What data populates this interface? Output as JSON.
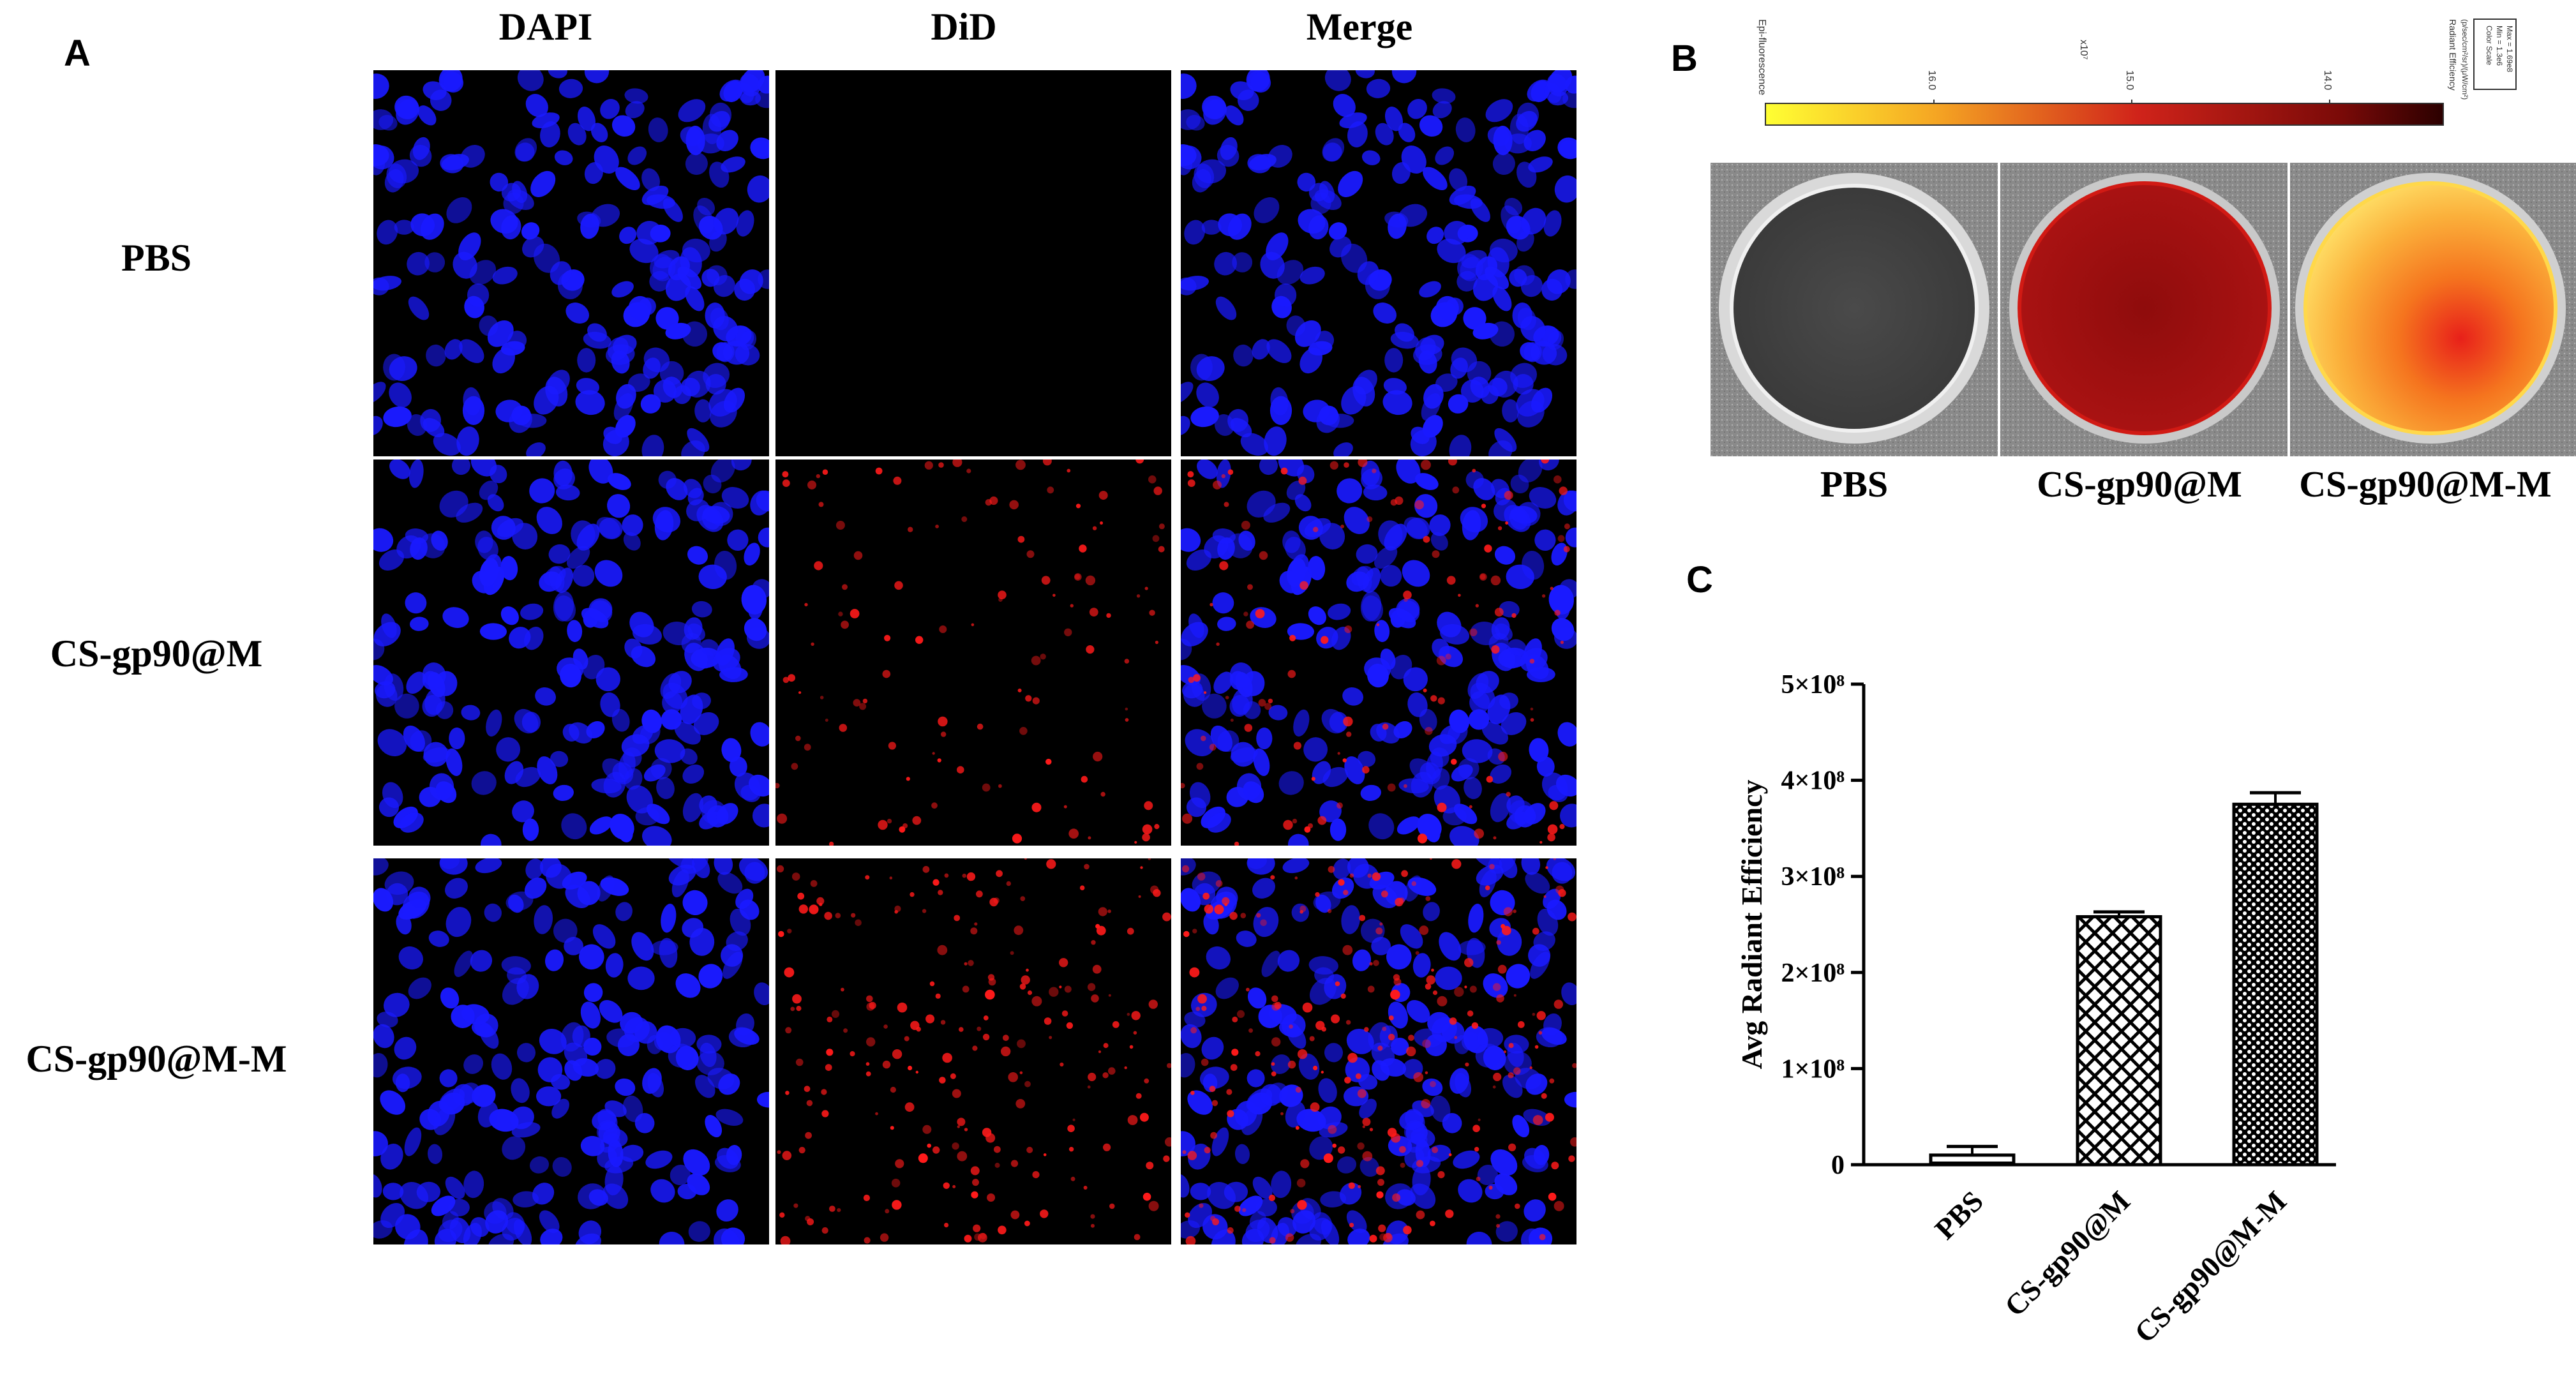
{
  "panel_a": {
    "letter": "A",
    "columns": [
      "DAPI",
      "DiD",
      "Merge"
    ],
    "rows": [
      "PBS",
      "CS-gp90@M",
      "CS-gp90@M-M"
    ]
  },
  "panel_b": {
    "letter": "B",
    "colorbar": {
      "left_label": "Epi-fluorescence",
      "ticks": [
        "16.0",
        "15.0",
        "14.0"
      ],
      "scale_label": "x10⁷",
      "right_label": "Radiant Efficiency",
      "units": "(p/sec/cm²/sr)/(μW/cm²)",
      "box_lines": [
        "Color Scale",
        "Min = 1.3e6",
        "Max = 1.69e8"
      ],
      "colors": [
        "#ffff33",
        "#f5a623",
        "#d0231a",
        "#7a0a08",
        "#2b0000"
      ]
    },
    "wells": [
      "PBS",
      "CS-gp90@M",
      "CS-gp90@M-M"
    ]
  },
  "chart_data": {
    "type": "bar",
    "panel_letter": "C",
    "categories": [
      "PBS",
      "CS-gp90@M",
      "CS-gp90@M-M"
    ],
    "values": [
      10000000,
      258000000,
      375000000
    ],
    "errors": [
      9000000,
      5000000,
      12000000
    ],
    "patterns": [
      "hatch-horizontal",
      "crosshatch",
      "dots"
    ],
    "ylabel": "Avg Radiant Efficiency",
    "ylim": [
      0,
      500000000
    ],
    "yticks": [
      {
        "value": 0,
        "label": "0"
      },
      {
        "value": 100000000,
        "label": "1×10⁸"
      },
      {
        "value": 200000000,
        "label": "2×10⁸"
      },
      {
        "value": 300000000,
        "label": "3×10⁸"
      },
      {
        "value": 400000000,
        "label": "4×10⁸"
      },
      {
        "value": 500000000,
        "label": "5×10⁸"
      }
    ],
    "grid": false,
    "legend": "none"
  }
}
